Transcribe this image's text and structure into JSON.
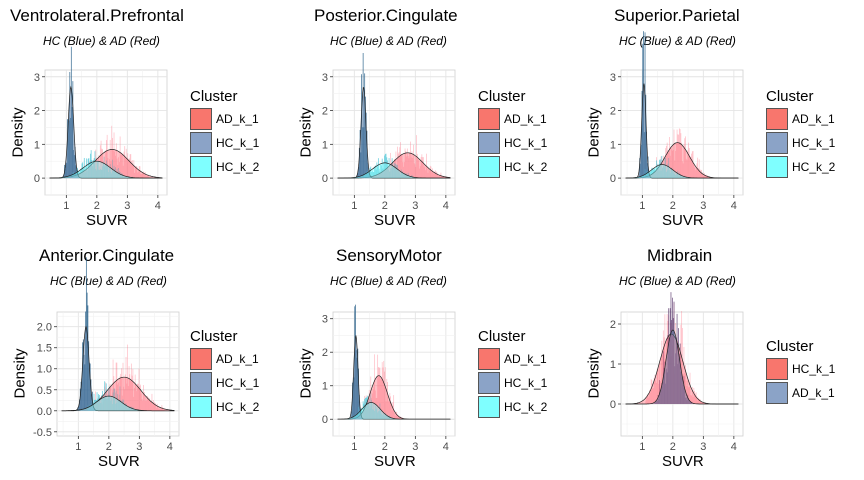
{
  "chart_data": [
    {
      "type": "histogram-density",
      "title": "Ventrolateral.Prefrontal",
      "subtitle": "HC (Blue) & AD (Red)",
      "xlabel": "SUVR",
      "ylabel": "Density",
      "xlim": [
        0.3,
        4.3
      ],
      "ylim": [
        -0.5,
        3.2
      ],
      "xticks": [
        1,
        2,
        3,
        4
      ],
      "yticks": [
        0,
        1,
        2,
        3
      ],
      "legend": {
        "title": "Cluster",
        "position": "right",
        "items": [
          {
            "label": "AD_k_1",
            "color": "#F8766D"
          },
          {
            "label": "HC_k_1",
            "color": "#8BA3C7"
          },
          {
            "label": "HC_k_2",
            "color": "#7FFFFF"
          }
        ]
      },
      "series": [
        {
          "name": "AD_k_1",
          "color": "#FF5A6E",
          "range": [
            1.1,
            3.7
          ],
          "density": {
            "mean": 2.5,
            "sd": 0.55,
            "peak": 0.85
          }
        },
        {
          "name": "HC_k_1",
          "color": "#1F5A85",
          "range": [
            0.9,
            1.7
          ],
          "density": {
            "mean": 1.15,
            "sd": 0.09,
            "peak": 2.7
          }
        },
        {
          "name": "HC_k_2",
          "color": "#4FC8D8",
          "range": [
            1.2,
            3.2
          ],
          "density": {
            "mean": 2.0,
            "sd": 0.45,
            "peak": 0.5
          }
        }
      ]
    },
    {
      "type": "histogram-density",
      "title": "Posterior.Cingulate",
      "subtitle": "HC (Blue) & AD (Red)",
      "xlabel": "SUVR",
      "ylabel": "Density",
      "xlim": [
        0.3,
        4.3
      ],
      "ylim": [
        -0.5,
        3.2
      ],
      "xticks": [
        1,
        2,
        3,
        4
      ],
      "yticks": [
        0,
        1,
        2,
        3
      ],
      "legend": {
        "title": "Cluster",
        "position": "right",
        "items": [
          {
            "label": "AD_k_1",
            "color": "#F8766D"
          },
          {
            "label": "HC_k_1",
            "color": "#8BA3C7"
          },
          {
            "label": "HC_k_2",
            "color": "#7FFFFF"
          }
        ]
      },
      "series": [
        {
          "name": "AD_k_1",
          "color": "#FF5A6E",
          "range": [
            1.5,
            4.1
          ],
          "density": {
            "mean": 2.75,
            "sd": 0.5,
            "peak": 0.75
          }
        },
        {
          "name": "HC_k_1",
          "color": "#1F5A85",
          "range": [
            1.0,
            1.8
          ],
          "density": {
            "mean": 1.3,
            "sd": 0.08,
            "peak": 2.7
          }
        },
        {
          "name": "HC_k_2",
          "color": "#4FC8D8",
          "range": [
            1.3,
            3.0
          ],
          "density": {
            "mean": 2.0,
            "sd": 0.4,
            "peak": 0.45
          }
        }
      ]
    },
    {
      "type": "histogram-density",
      "title": "Superior.Parietal",
      "subtitle": "HC (Blue) & AD (Red)",
      "xlabel": "SUVR",
      "ylabel": "Density",
      "xlim": [
        0.3,
        4.3
      ],
      "ylim": [
        -0.5,
        3.2
      ],
      "xticks": [
        1,
        2,
        3,
        4
      ],
      "yticks": [
        0,
        1,
        2,
        3
      ],
      "legend": {
        "title": "Cluster",
        "position": "right",
        "items": [
          {
            "label": "AD_k_1",
            "color": "#F8766D"
          },
          {
            "label": "HC_k_1",
            "color": "#8BA3C7"
          },
          {
            "label": "HC_k_2",
            "color": "#7FFFFF"
          }
        ]
      },
      "series": [
        {
          "name": "AD_k_1",
          "color": "#FF5A6E",
          "range": [
            1.3,
            3.2
          ],
          "density": {
            "mean": 2.15,
            "sd": 0.4,
            "peak": 1.05
          }
        },
        {
          "name": "HC_k_1",
          "color": "#1F5A85",
          "range": [
            0.9,
            1.5
          ],
          "density": {
            "mean": 1.05,
            "sd": 0.07,
            "peak": 2.8
          }
        },
        {
          "name": "HC_k_2",
          "color": "#4FC8D8",
          "range": [
            1.0,
            2.6
          ],
          "density": {
            "mean": 1.65,
            "sd": 0.35,
            "peak": 0.4
          }
        }
      ]
    },
    {
      "type": "histogram-density",
      "title": "Anterior.Cingulate",
      "subtitle": "HC (Blue) & AD (Red)",
      "xlabel": "SUVR",
      "ylabel": "Density",
      "xlim": [
        0.3,
        4.3
      ],
      "ylim": [
        -0.6,
        2.35
      ],
      "xticks": [
        1,
        2,
        3,
        4
      ],
      "yticks": [
        -0.5,
        0.0,
        0.5,
        1.0,
        1.5,
        2.0
      ],
      "yticklabels": [
        "-0.5",
        "0.0",
        "0.5",
        "1.0",
        "1.5",
        "2.0"
      ],
      "legend": {
        "title": "Cluster",
        "position": "right",
        "items": [
          {
            "label": "AD_k_1",
            "color": "#F8766D"
          },
          {
            "label": "HC_k_1",
            "color": "#8BA3C7"
          },
          {
            "label": "HC_k_2",
            "color": "#7FFFFF"
          }
        ]
      },
      "series": [
        {
          "name": "AD_k_1",
          "color": "#FF5A6E",
          "range": [
            1.5,
            3.8
          ],
          "density": {
            "mean": 2.5,
            "sd": 0.55,
            "peak": 0.8
          }
        },
        {
          "name": "HC_k_1",
          "color": "#1F5A85",
          "range": [
            0.9,
            1.8
          ],
          "density": {
            "mean": 1.25,
            "sd": 0.1,
            "peak": 2.0
          }
        },
        {
          "name": "HC_k_2",
          "color": "#4FC8D8",
          "range": [
            1.3,
            3.0
          ],
          "density": {
            "mean": 2.0,
            "sd": 0.4,
            "peak": 0.35
          }
        }
      ]
    },
    {
      "type": "histogram-density",
      "title": "SensoryMotor",
      "subtitle": "HC (Blue) & AD (Red)",
      "xlabel": "SUVR",
      "ylabel": "Density",
      "xlim": [
        0.3,
        4.3
      ],
      "ylim": [
        -0.5,
        3.2
      ],
      "xticks": [
        1,
        2,
        3,
        4
      ],
      "yticks": [
        0,
        1,
        2,
        3
      ],
      "legend": {
        "title": "Cluster",
        "position": "right",
        "items": [
          {
            "label": "AD_k_1",
            "color": "#F8766D"
          },
          {
            "label": "HC_k_1",
            "color": "#8BA3C7"
          },
          {
            "label": "HC_k_2",
            "color": "#7FFFFF"
          }
        ]
      },
      "series": [
        {
          "name": "AD_k_1",
          "color": "#FF5A6E",
          "range": [
            1.3,
            2.6
          ],
          "density": {
            "mean": 1.8,
            "sd": 0.28,
            "peak": 1.3
          }
        },
        {
          "name": "HC_k_1",
          "color": "#1F5A85",
          "range": [
            0.9,
            1.5
          ],
          "density": {
            "mean": 1.05,
            "sd": 0.07,
            "peak": 2.5
          }
        },
        {
          "name": "HC_k_2",
          "color": "#4FC8D8",
          "range": [
            1.0,
            2.3
          ],
          "density": {
            "mean": 1.55,
            "sd": 0.3,
            "peak": 0.5
          }
        }
      ]
    },
    {
      "type": "histogram-density",
      "title": "Midbrain",
      "subtitle": "HC (Blue) & AD (Red)",
      "xlabel": "SUVR",
      "ylabel": "Density",
      "xlim": [
        0.3,
        4.3
      ],
      "ylim": [
        -0.8,
        2.3
      ],
      "xticks": [
        1,
        2,
        3,
        4
      ],
      "yticks": [
        0,
        1,
        2
      ],
      "legend": {
        "title": "Cluster",
        "position": "right",
        "items": [
          {
            "label": "HC_k_1",
            "color": "#F8766D"
          },
          {
            "label": "AD_k_1",
            "color": "#8BA3C7"
          }
        ]
      },
      "series": [
        {
          "name": "HC_k_1",
          "color": "#FF5A6E",
          "range": [
            1.1,
            3.1
          ],
          "density": {
            "mean": 1.95,
            "sd": 0.38,
            "peak": 1.75
          }
        },
        {
          "name": "AD_k_1",
          "color": "#5B3A6E",
          "range": [
            1.4,
            2.6
          ],
          "density": {
            "mean": 2.0,
            "sd": 0.22,
            "peak": 1.85
          }
        }
      ]
    }
  ]
}
